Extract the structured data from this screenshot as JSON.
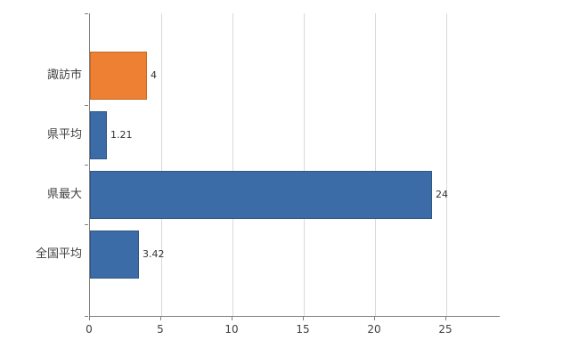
{
  "chart_data": {
    "type": "bar",
    "orientation": "horizontal",
    "title": "",
    "xlabel": "",
    "ylabel": "",
    "categories": [
      "諏訪市",
      "県平均",
      "県最大",
      "全国平均"
    ],
    "values": [
      4,
      1.21,
      24,
      3.42
    ],
    "value_labels": [
      "4",
      "1.21",
      "24",
      "3.42"
    ],
    "bar_colors": [
      "#ED8033",
      "#3B6CA8",
      "#3B6CA8",
      "#3B6CA8"
    ],
    "bar_border_colors": [
      "#c9671f",
      "#2e5784",
      "#2e5784",
      "#2e5784"
    ],
    "x_ticks": [
      0,
      5,
      10,
      15,
      20,
      25
    ],
    "xlim": [
      0,
      28.75
    ],
    "grid": "vertical",
    "gridline_color": "#d9d9d9",
    "axis_color": "#808080",
    "background_color": "#ffffff",
    "legend_position": "none"
  }
}
